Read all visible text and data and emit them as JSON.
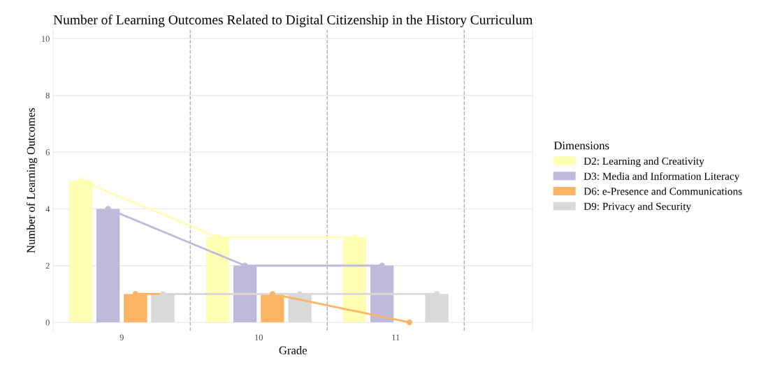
{
  "chart_data": {
    "type": "bar",
    "title": "Number of Learning Outcomes Related to Digital Citizenship in the History Curriculum",
    "xlabel": "Grade",
    "ylabel": "Number of Learning Outcomes",
    "legend_title": "Dimensions",
    "x": [
      9,
      10,
      11
    ],
    "xlim": [
      8.5,
      12
    ],
    "xticks": [
      9,
      10,
      11
    ],
    "ylim": [
      -0.3,
      10.3
    ],
    "yticks": [
      0,
      2,
      4,
      6,
      8,
      10
    ],
    "grid": "y",
    "legend": "right",
    "marker": "circle",
    "ref_lines": [
      {
        "axis": "x",
        "value": 9.5,
        "label": null,
        "line_style": "dashed",
        "color": "#b0b0b0"
      },
      {
        "axis": "x",
        "value": 10.5,
        "label": null,
        "line_style": "dashed",
        "color": "#b0b0b0"
      },
      {
        "axis": "x",
        "value": 11.5,
        "label": null,
        "line_style": "dashed",
        "color": "#b0b0b0"
      }
    ],
    "series": [
      {
        "name": "D2: Learning and Creativity",
        "color": "#ffffb3",
        "values": [
          5,
          3,
          3
        ]
      },
      {
        "name": "D3: Media and Information Literacy",
        "color": "#bebada",
        "values": [
          4,
          2,
          2
        ]
      },
      {
        "name": "D6: e-Presence and Communications",
        "color": "#fdb462",
        "values": [
          1,
          1,
          0
        ]
      },
      {
        "name": "D9: Privacy and Security",
        "color": "#d9d9d9",
        "values": [
          1,
          1,
          1
        ]
      },
      {
        "type": "line",
        "color": "#ffffb3",
        "x": [
          8.7,
          9.7,
          10.7
        ],
        "values": [
          5,
          3,
          3
        ]
      },
      {
        "type": "line",
        "color": "#bebada",
        "x": [
          8.9,
          9.9,
          10.9
        ],
        "values": [
          4,
          2,
          2
        ]
      },
      {
        "type": "line",
        "color": "#fdb462",
        "x": [
          9.1,
          10.1,
          11.1
        ],
        "values": [
          1,
          1,
          0
        ]
      },
      {
        "type": "line",
        "color": "#d9d9d9",
        "x": [
          9.3,
          10.3,
          11.3
        ],
        "values": [
          1,
          1,
          1
        ]
      }
    ]
  }
}
